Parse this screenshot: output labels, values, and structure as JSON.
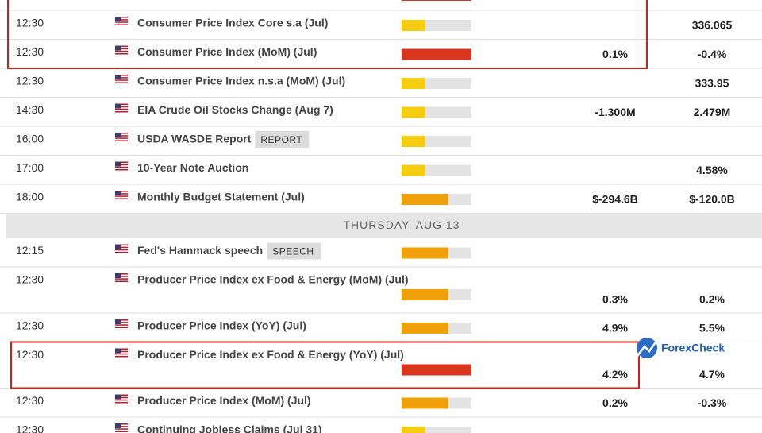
{
  "calendar": {
    "rows_before": [
      {
        "time": "12:30",
        "event": "Consumer Price Index Core s.a (Jul)",
        "impact": 1,
        "previous": "336.065"
      },
      {
        "time": "12:30",
        "event": "Consumer Price Index (MoM) (Jul)",
        "impact": 3,
        "forecast": "0.1%",
        "previous": "-0.4%"
      },
      {
        "time": "12:30",
        "event": "Consumer Price Index n.s.a (MoM) (Jul)",
        "impact": 1,
        "previous": "333.95"
      },
      {
        "time": "14:30",
        "event": "EIA Crude Oil Stocks Change (Aug 7)",
        "impact": 1,
        "forecast": "-1.300M",
        "previous": "2.479M"
      },
      {
        "time": "16:00",
        "event": "USDA WASDE Report",
        "tag": "REPORT",
        "impact": 1
      },
      {
        "time": "17:00",
        "event": "10-Year Note Auction",
        "impact": 1,
        "previous": "4.58%"
      },
      {
        "time": "18:00",
        "event": "Monthly Budget Statement (Jul)",
        "impact": 2,
        "forecast": "$-294.6B",
        "previous": "$-120.0B"
      }
    ],
    "day_header": "THURSDAY, AUG 13",
    "rows_after": [
      {
        "time": "12:15",
        "event": "Fed's Hammack speech",
        "tag": "SPEECH",
        "impact": 2
      },
      {
        "time": "12:30",
        "event": "Producer Price Index ex Food & Energy (MoM) (Jul)",
        "impact": 2,
        "forecast": "0.3%",
        "previous": "0.2%",
        "tall": true
      },
      {
        "time": "12:30",
        "event": "Producer Price Index (YoY) (Jul)",
        "impact": 2,
        "forecast": "4.9%",
        "previous": "5.5%"
      },
      {
        "time": "12:30",
        "event": "Producer Price Index ex Food & Energy (YoY) (Jul)",
        "impact": 3,
        "forecast": "4.2%",
        "previous": "4.7%",
        "tall": true
      },
      {
        "time": "12:30",
        "event": "Producer Price Index (MoM) (Jul)",
        "impact": 2,
        "forecast": "0.2%",
        "previous": "-0.3%"
      },
      {
        "time": "12:30",
        "event": "Continuing Jobless Claims (Jul 31)",
        "impact": 1
      }
    ],
    "watermark": "ForexCheck"
  }
}
